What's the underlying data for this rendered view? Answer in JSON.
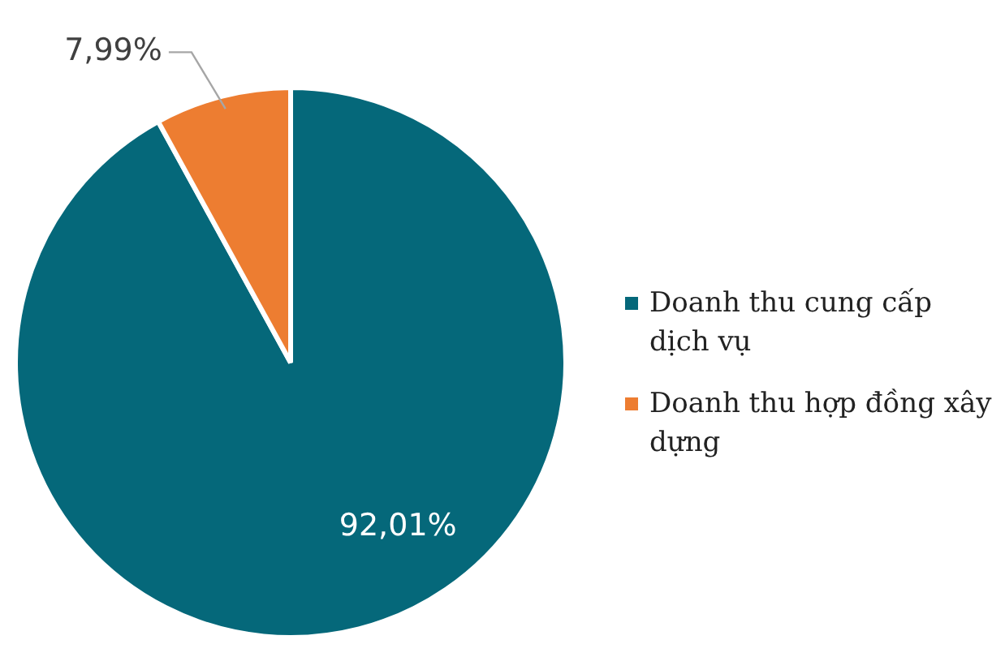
{
  "chart_data": {
    "type": "pie",
    "categories": [
      "Doanh thu cung cấp dịch vụ",
      "Doanh thu hợp đồng xây dựng"
    ],
    "values": [
      92.01,
      7.99
    ],
    "colors": [
      "#05687a",
      "#ed7d31"
    ],
    "value_labels": [
      "92,01%",
      "7,99%"
    ],
    "legend": "right"
  }
}
